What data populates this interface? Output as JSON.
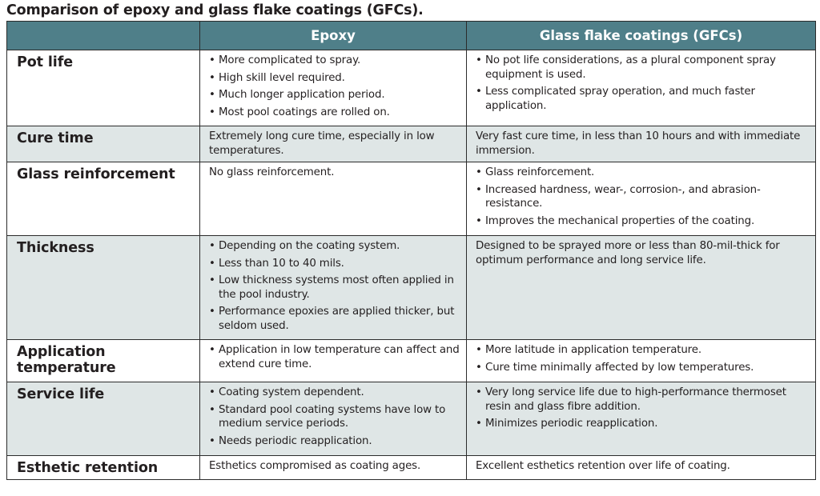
{
  "title": "Comparison of epoxy and glass flake coatings (GFCs).",
  "header": {
    "corner": "",
    "col1": "Epoxy",
    "col2": "Glass flake coatings (GFCs)"
  },
  "rows": [
    {
      "label": "Pot life",
      "epoxy": [
        "More complicated to spray.",
        "High skill level required.",
        "Much longer application period.",
        "Most pool coatings are rolled on."
      ],
      "gfc": [
        "No pot life considerations, as a plural component spray equipment is used.",
        "Less complicated spray operation, and much faster application."
      ]
    },
    {
      "label": "Cure time",
      "epoxy": "Extremely long cure time, especially in low temperatures.",
      "gfc": "Very fast cure time, in less than 10 hours and with immediate immersion."
    },
    {
      "label": "Glass reinforcement",
      "epoxy": "No glass reinforcement.",
      "gfc": [
        "Glass reinforcement.",
        "Increased hardness, wear-, corrosion-, and abrasion- resistance.",
        "Improves the mechanical properties of the coating."
      ]
    },
    {
      "label": "Thickness",
      "epoxy": [
        "Depending on the coating system.",
        "Less than 10 to 40 mils.",
        "Low thickness systems most often applied in the pool industry.",
        "Performance epoxies are applied thicker, but seldom used."
      ],
      "gfc": "Designed to be sprayed more or less than 80-mil-thick for optimum performance and long service life."
    },
    {
      "label": "Application temperature",
      "epoxy": [
        "Application in low temperature can affect and extend cure time."
      ],
      "gfc": [
        "More latitude in application temperature.",
        "Cure time minimally affected by low temperatures."
      ]
    },
    {
      "label": "Service life",
      "epoxy": [
        "Coating system dependent.",
        "Standard pool coating systems have low to medium service periods.",
        "Needs periodic reapplication."
      ],
      "gfc": [
        "Very long service life due to high-performance thermoset resin and glass fibre addition.",
        "Minimizes periodic reapplication."
      ]
    },
    {
      "label": "Esthetic retention",
      "epoxy": "Esthetics compromised as coating ages.",
      "gfc": "Excellent esthetics retention over life of coating."
    }
  ],
  "colors": {
    "header_bg": "#4f7f89",
    "header_text": "#ffffff",
    "shade_row": "#dfe6e6",
    "border": "#2b2b2b"
  }
}
